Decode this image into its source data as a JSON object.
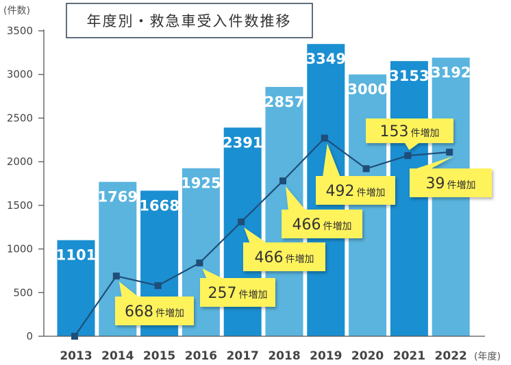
{
  "chart_data": {
    "type": "bar",
    "title": "年度別・救急車受入件数推移",
    "ylabel": "(件数)",
    "xlabel_unit": "(年度)",
    "ylim": [
      0,
      3500
    ],
    "yticks": [
      0,
      500,
      1000,
      1500,
      2000,
      2500,
      3000,
      3500
    ],
    "categories": [
      "2013",
      "2014",
      "2015",
      "2016",
      "2017",
      "2018",
      "2019",
      "2020",
      "2021",
      "2022"
    ],
    "values": [
      1101,
      1769,
      1668,
      1925,
      2391,
      2857,
      3349,
      3000,
      3153,
      3192
    ],
    "line_series": {
      "name": "line",
      "values": [
        0,
        690,
        580,
        840,
        1310,
        1780,
        2270,
        1920,
        2070,
        2110
      ]
    },
    "annotations": [
      {
        "category": "2014",
        "label": "668件増加",
        "number": "668",
        "suffix": "件増加"
      },
      {
        "category": "2016",
        "label": "257件増加",
        "number": "257",
        "suffix": "件増加"
      },
      {
        "category": "2017",
        "label": "466件増加",
        "number": "466",
        "suffix": "件増加"
      },
      {
        "category": "2018",
        "label": "466件増加",
        "number": "466",
        "suffix": "件増加"
      },
      {
        "category": "2019",
        "label": "492件増加",
        "number": "492",
        "suffix": "件増加"
      },
      {
        "category": "2021",
        "label": "153件増加",
        "number": "153",
        "suffix": "件増加"
      },
      {
        "category": "2022",
        "label": "39件増加",
        "number": "39",
        "suffix": "件増加"
      }
    ],
    "colors": {
      "bar_dark": "#1a8fd1",
      "bar_light": "#5ab4de",
      "line": "#1f4e79",
      "callout": "#fff35c",
      "axis": "#555555",
      "text": "#333333",
      "title_border": "#2c3e50"
    }
  }
}
